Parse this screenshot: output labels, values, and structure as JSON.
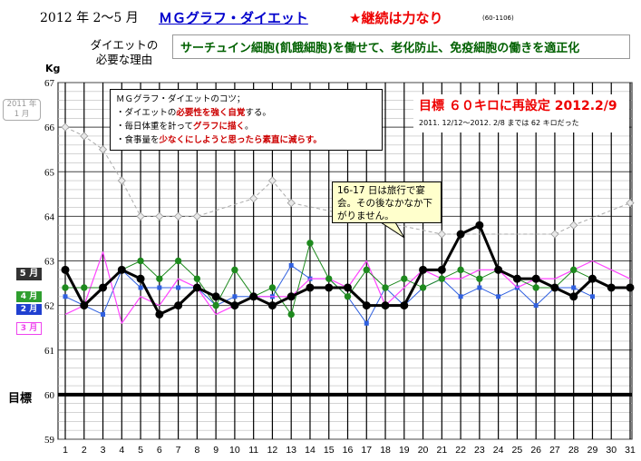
{
  "header": {
    "date_range": "2012 年 2～5 月",
    "title": "ＭＧグラフ・ダイエット",
    "motto": "★継続は力なり",
    "code": "(60-1106)"
  },
  "reason": {
    "label_line1": "ダイエットの",
    "label_line2": "必要な理由",
    "text": "サーチュイン細胞(飢餓細胞)を働せて、老化防止、免疫細胞の働きを適正化"
  },
  "tips": {
    "title": "ＭＧグラフ・ダイエットのコツ；",
    "line1_a": "・ダイエットの",
    "line1_b": "必要性を強く自覚",
    "line1_c": "する。",
    "line2_a": "・毎日体重を計って",
    "line2_b": "グラフに描く",
    "line2_c": "。",
    "line3_a": "・食事量を",
    "line3_b": "少なくにしようと思ったら素直に減らす。"
  },
  "goal_box": {
    "main": "目標 ６０キロに再設定 2012.2/9",
    "sub": "2011. 12/12～2012. 2/8 までは 62 キロだった"
  },
  "trip_note": {
    "text": "16-17 日は旅行で宴会。その後なかなか下がりません。"
  },
  "badges": {
    "jan": "2011 年\n1 月",
    "jan_l1": "2011 年",
    "jan_l2": "1 月",
    "may": "5 月",
    "apr": "4 月",
    "feb": "2 月",
    "mar": "3 月"
  },
  "goal_label": "目標",
  "colors": {
    "may": "#000000",
    "apr": "#1e8a1e",
    "feb": "#3060e0",
    "mar": "#ff44ff",
    "jan": "#a0a0a0",
    "goal": "#000000"
  },
  "chart_data": {
    "type": "line",
    "ylabel": "Kg",
    "ylim": [
      59,
      67
    ],
    "yticks": [
      59,
      60,
      61,
      62,
      63,
      64,
      65,
      66,
      67
    ],
    "x": [
      1,
      2,
      3,
      4,
      5,
      6,
      7,
      8,
      9,
      10,
      11,
      12,
      13,
      14,
      15,
      16,
      17,
      18,
      19,
      20,
      21,
      22,
      23,
      24,
      25,
      26,
      27,
      28,
      29,
      30,
      31
    ],
    "goal": 60,
    "grid": true,
    "series": [
      {
        "name": "2011 年 1 月",
        "values": [
          66.0,
          65.8,
          65.5,
          64.8,
          64.0,
          64.0,
          64.0,
          64.0,
          null,
          null,
          64.4,
          64.8,
          64.3,
          null,
          null,
          null,
          null,
          null,
          null,
          null,
          63.6,
          null,
          null,
          null,
          null,
          null,
          63.6,
          63.8,
          null,
          null,
          64.3
        ]
      },
      {
        "name": "2 月",
        "values": [
          62.2,
          62.0,
          61.8,
          62.8,
          62.4,
          62.4,
          62.4,
          62.4,
          62.0,
          62.2,
          62.2,
          62.2,
          62.9,
          62.6,
          62.6,
          62.2,
          61.6,
          62.4,
          62.0,
          62.4,
          62.6,
          62.2,
          62.4,
          62.2,
          62.4,
          62.0,
          62.4,
          62.4,
          62.2,
          null,
          null
        ]
      },
      {
        "name": "3 月",
        "values": [
          61.8,
          62.0,
          63.2,
          61.6,
          62.2,
          62.0,
          62.6,
          62.4,
          61.8,
          62.0,
          62.2,
          62.2,
          62.2,
          62.6,
          62.6,
          62.4,
          63.0,
          62.0,
          62.4,
          62.8,
          62.6,
          62.6,
          62.8,
          62.8,
          62.4,
          62.6,
          62.6,
          62.8,
          63.0,
          62.8,
          62.6
        ]
      },
      {
        "name": "4 月",
        "values": [
          62.4,
          62.4,
          62.4,
          62.8,
          63.0,
          62.6,
          63.0,
          62.6,
          62.0,
          62.8,
          62.2,
          62.4,
          61.8,
          63.4,
          62.6,
          62.2,
          62.8,
          62.4,
          62.6,
          62.4,
          62.6,
          62.8,
          62.6,
          62.8,
          62.6,
          62.4,
          62.4,
          62.8,
          62.6,
          62.4,
          null
        ]
      },
      {
        "name": "5 月",
        "values": [
          62.8,
          62.0,
          62.4,
          62.8,
          62.6,
          61.8,
          62.0,
          62.4,
          62.2,
          62.0,
          62.2,
          62.0,
          62.2,
          62.4,
          62.4,
          62.4,
          62.0,
          62.0,
          62.0,
          62.8,
          62.8,
          63.6,
          63.8,
          62.8,
          62.6,
          62.6,
          62.4,
          62.2,
          62.6,
          62.4,
          62.4
        ]
      }
    ]
  }
}
